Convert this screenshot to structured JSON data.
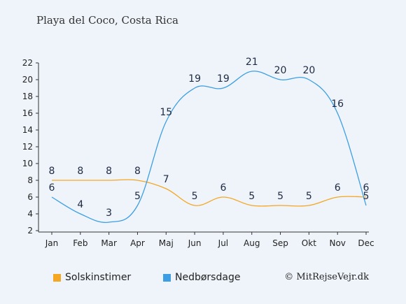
{
  "title": "Playa del Coco, Costa Rica",
  "credit": "© MitRejseVejr.dk",
  "colors": {
    "sun": "#f5a623",
    "rain": "#3d9ee3",
    "background": "#eef4fa"
  },
  "chart_data": {
    "type": "line",
    "title": "Playa del Coco, Costa Rica",
    "categories": [
      "Jan",
      "Feb",
      "Mar",
      "Apr",
      "Maj",
      "Jun",
      "Jul",
      "Aug",
      "Sep",
      "Okt",
      "Nov",
      "Dec"
    ],
    "ylim": [
      2,
      22
    ],
    "yticks": [
      2,
      4,
      6,
      8,
      10,
      12,
      14,
      16,
      18,
      20,
      22
    ],
    "grid": false,
    "legend_position": "bottom-left",
    "series": [
      {
        "name": "Solskinstimer",
        "color": "#f5a623",
        "values": [
          8,
          8,
          8,
          8,
          7,
          5,
          6,
          5,
          5,
          5,
          6,
          6
        ]
      },
      {
        "name": "Nedbørsdage",
        "color": "#3d9ee3",
        "values": [
          6,
          4,
          3,
          5,
          15,
          19,
          19,
          21,
          20,
          20,
          16,
          5
        ]
      }
    ]
  }
}
